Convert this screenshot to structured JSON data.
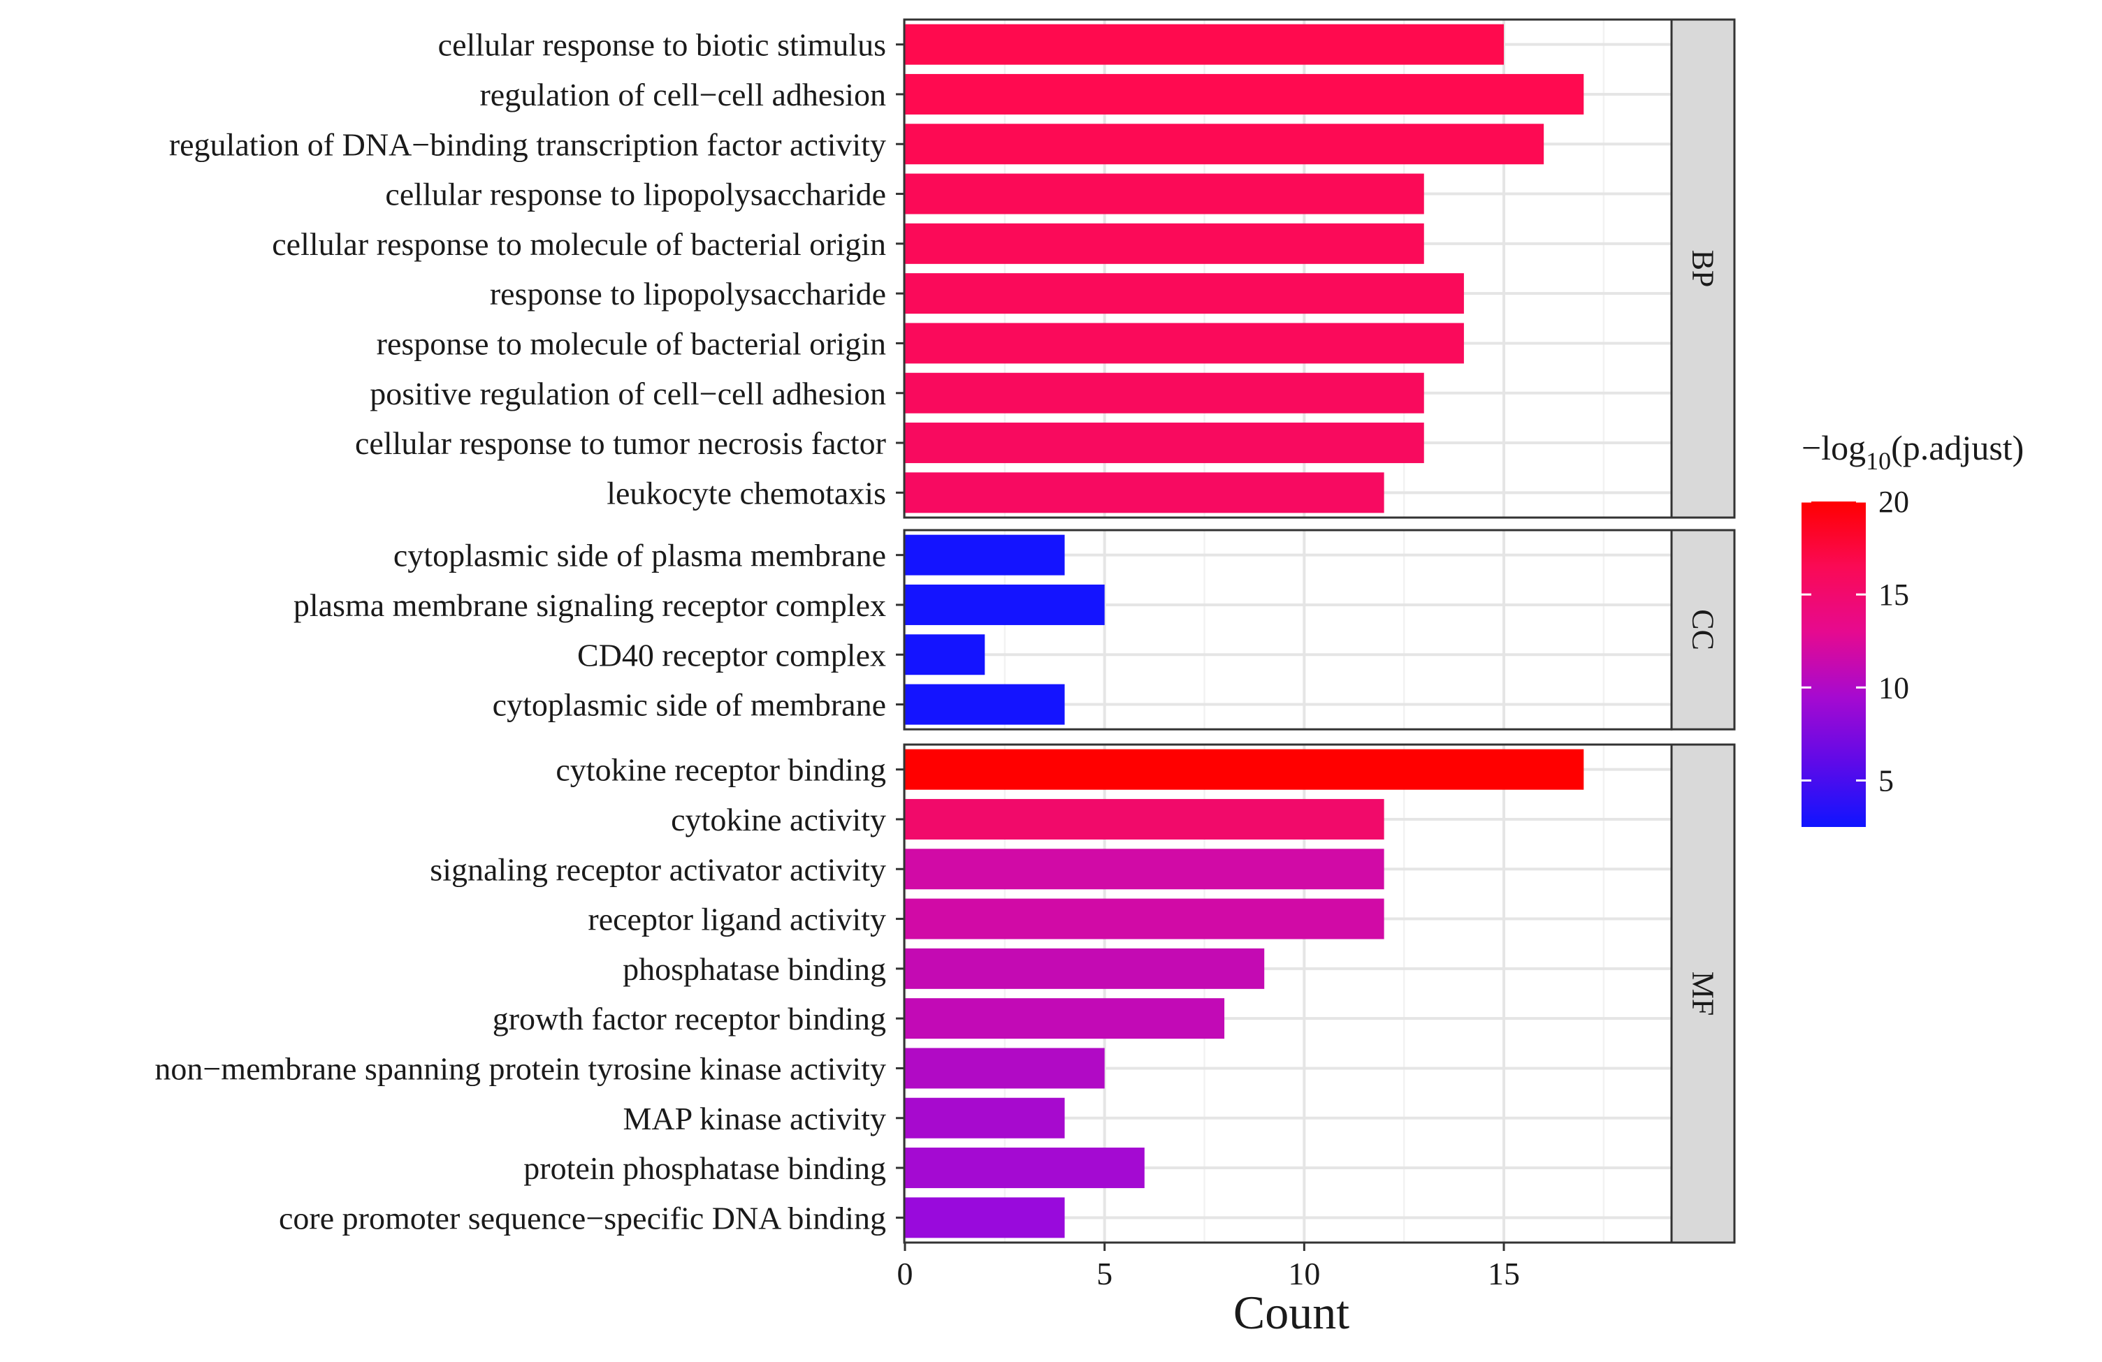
{
  "chart_data": {
    "type": "bar",
    "orientation": "horizontal",
    "xlabel": "Count",
    "xlim": [
      0,
      19.2
    ],
    "xticks": [
      0,
      5,
      10,
      15
    ],
    "grid": true,
    "facets": [
      {
        "label": "BP",
        "categories": [
          "cellular response to biotic stimulus",
          "regulation of cell−cell adhesion",
          "regulation of DNA−binding transcription factor activity",
          "cellular response to lipopolysaccharide",
          "cellular response to molecule of bacterial origin",
          "response to lipopolysaccharide",
          "response to molecule of bacterial origin",
          "positive regulation of cell−cell adhesion",
          "cellular response to tumor necrosis factor",
          "leukocyte chemotaxis"
        ],
        "values": [
          15,
          17,
          16,
          13,
          13,
          14,
          14,
          13,
          13,
          12
        ],
        "colors": [
          "#ff0a4e",
          "#ff0a50",
          "#fd0a53",
          "#fb0a57",
          "#fb0a58",
          "#fa0a5a",
          "#fa0a5b",
          "#f90a5d",
          "#f80a5f",
          "#f70a61"
        ]
      },
      {
        "label": "CC",
        "categories": [
          "cytoplasmic side of plasma membrane",
          "plasma membrane signaling receptor complex",
          "CD40 receptor complex",
          "cytoplasmic side of membrane"
        ],
        "values": [
          4,
          5,
          2,
          4
        ],
        "colors": [
          "#1414ff",
          "#1414ff",
          "#1414ff",
          "#1414ff"
        ]
      },
      {
        "label": "MF",
        "categories": [
          "cytokine receptor binding",
          "cytokine activity",
          "signaling receptor activator activity",
          "receptor ligand activity",
          "phosphatase binding",
          "growth factor receptor binding",
          "non−membrane spanning protein tyrosine kinase activity",
          "MAP kinase activity",
          "protein phosphatase binding",
          "core promoter sequence−specific DNA binding"
        ],
        "values": [
          17,
          12,
          12,
          12,
          9,
          8,
          5,
          4,
          6,
          4
        ],
        "colors": [
          "#ff0000",
          "#f10a6a",
          "#d10aa6",
          "#d10aa6",
          "#c40ab3",
          "#c20ab6",
          "#b10ac5",
          "#a70ace",
          "#a40ad2",
          "#990adc"
        ]
      }
    ],
    "legend": {
      "title_prefix": "−log",
      "title_sub": "10",
      "title_suffix": "(p.adjust)",
      "min": 2.5,
      "max": 20,
      "ticks": [
        5,
        10,
        15,
        20
      ],
      "gradient": [
        "#0f14ff",
        "#5f0ae8",
        "#a60ad0",
        "#e60a8f",
        "#fa0a55",
        "#ff0000"
      ],
      "placement": "right"
    }
  }
}
